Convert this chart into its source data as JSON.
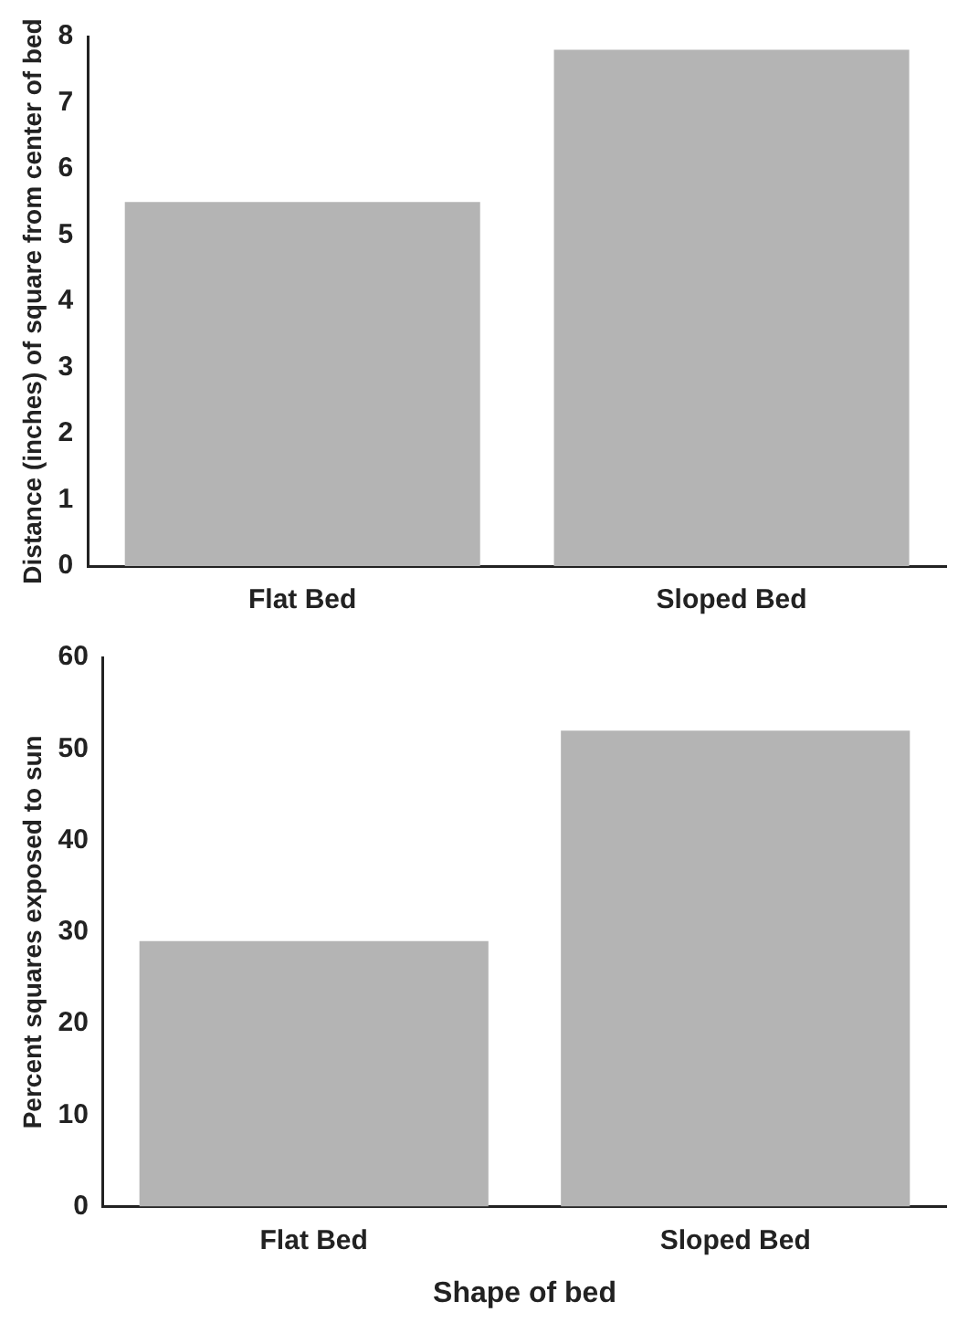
{
  "chart_data": [
    {
      "type": "bar",
      "categories": [
        "Flat Bed",
        "Sloped Bed"
      ],
      "values": [
        5.5,
        7.8
      ],
      "color": "#b4b4b4",
      "ylabel": "Distance (inches) of square from center of bed",
      "ylim": [
        0,
        8
      ],
      "yticks": [
        0,
        1,
        2,
        3,
        4,
        5,
        6,
        7,
        8
      ],
      "grid": false,
      "legend": false
    },
    {
      "type": "bar",
      "categories": [
        "Flat Bed",
        "Sloped Bed"
      ],
      "values": [
        29,
        52
      ],
      "color": "#b4b4b4",
      "ylabel": "Percent squares exposed to sun",
      "xlabel": "Shape of bed",
      "ylim": [
        0,
        60
      ],
      "yticks": [
        0,
        10,
        20,
        30,
        40,
        50,
        60
      ],
      "grid": false,
      "legend": false
    }
  ]
}
